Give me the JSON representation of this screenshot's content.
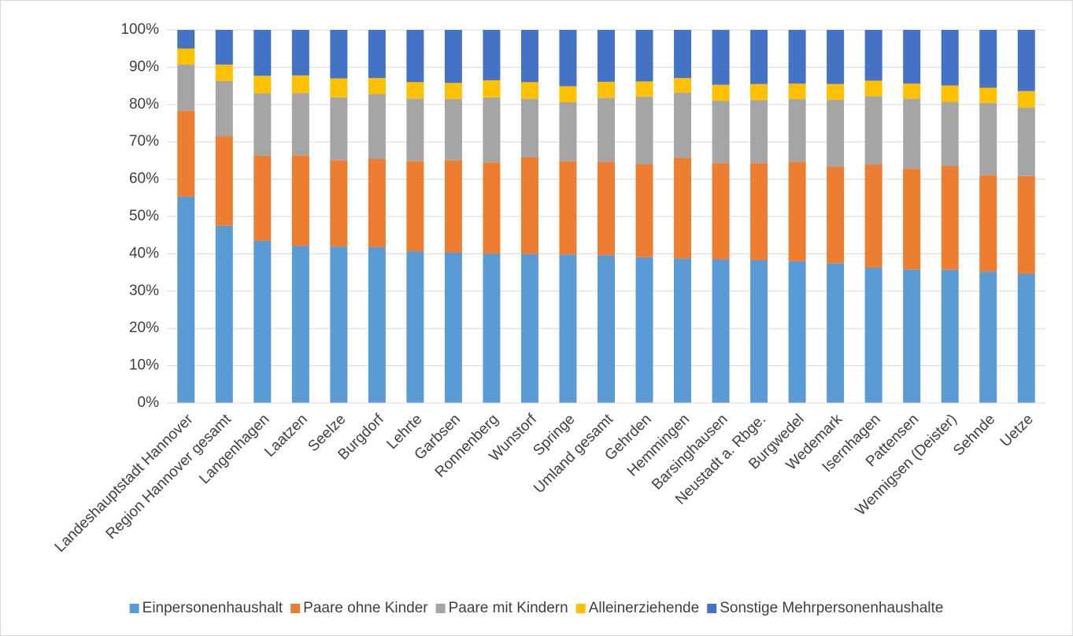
{
  "chart_data": {
    "type": "stacked_bar",
    "categories": [
      "Landeshauptstadt Hannover",
      "Region Hannover gesamt",
      "Langenhagen",
      "Laatzen",
      "Seelze",
      "Burgdorf",
      "Lehrte",
      "Garbsen",
      "Ronnenberg",
      "Wunstorf",
      "Springe",
      "Umland gesamt",
      "Gehrden",
      "Hemmingen",
      "Barsinghausen",
      "Neustadt a. Rbge.",
      "Burgwedel",
      "Wedemark",
      "Isernhagen",
      "Pattensen",
      "Wennigsen (Deister)",
      "Sehnde",
      "Uetze"
    ],
    "series": [
      {
        "name": "Einpersonenhaushalt",
        "color": "#5b9bd5",
        "values": [
          55.3,
          47.5,
          43.5,
          42.1,
          41.9,
          41.8,
          40.6,
          40.3,
          40.0,
          39.9,
          39.8,
          39.6,
          39.1,
          38.7,
          38.5,
          38.3,
          38.0,
          37.4,
          36.3,
          35.8,
          35.7,
          35.2,
          34.6
        ]
      },
      {
        "name": "Paare ohne Kinder",
        "color": "#ed7d31",
        "values": [
          23.0,
          24.0,
          22.8,
          24.3,
          23.1,
          23.6,
          24.2,
          24.7,
          24.5,
          26.0,
          25.0,
          25.0,
          25.0,
          27.0,
          25.8,
          26.0,
          26.6,
          25.9,
          27.7,
          27.0,
          27.8,
          25.8,
          26.2
        ]
      },
      {
        "name": "Paare mit Kindern",
        "color": "#a5a5a5",
        "values": [
          12.4,
          14.8,
          16.7,
          16.7,
          16.9,
          17.4,
          16.8,
          16.5,
          17.4,
          15.7,
          15.8,
          17.2,
          18.0,
          17.5,
          16.7,
          16.9,
          16.9,
          18.0,
          18.2,
          18.8,
          17.2,
          19.4,
          18.4
        ]
      },
      {
        "name": "Alleinerziehende",
        "color": "#ffc000",
        "values": [
          4.3,
          4.4,
          4.7,
          4.7,
          5.1,
          4.3,
          4.4,
          4.3,
          4.6,
          4.4,
          4.3,
          4.3,
          4.1,
          3.9,
          4.3,
          4.3,
          4.1,
          4.2,
          4.2,
          4.0,
          4.4,
          4.1,
          4.4
        ]
      },
      {
        "name": "Sonstige Mehrpersonenhaushalte",
        "color": "#4472c4",
        "values": [
          5.0,
          9.3,
          12.3,
          12.2,
          13.0,
          12.9,
          14.0,
          14.2,
          13.5,
          14.0,
          15.1,
          13.9,
          13.8,
          12.9,
          14.7,
          14.5,
          14.4,
          14.5,
          13.6,
          14.4,
          14.9,
          15.5,
          16.4
        ]
      }
    ],
    "ylim": [
      0,
      100
    ],
    "yticks": [
      {
        "value": 0,
        "label": "0%"
      },
      {
        "value": 10,
        "label": "10%"
      },
      {
        "value": 20,
        "label": "20%"
      },
      {
        "value": 30,
        "label": "30%"
      },
      {
        "value": 40,
        "label": "40%"
      },
      {
        "value": 50,
        "label": "50%"
      },
      {
        "value": 60,
        "label": "60%"
      },
      {
        "value": 70,
        "label": "70%"
      },
      {
        "value": 80,
        "label": "80%"
      },
      {
        "value": 90,
        "label": "90%"
      },
      {
        "value": 100,
        "label": "100%"
      }
    ],
    "grid": true,
    "legend": "bottom"
  }
}
